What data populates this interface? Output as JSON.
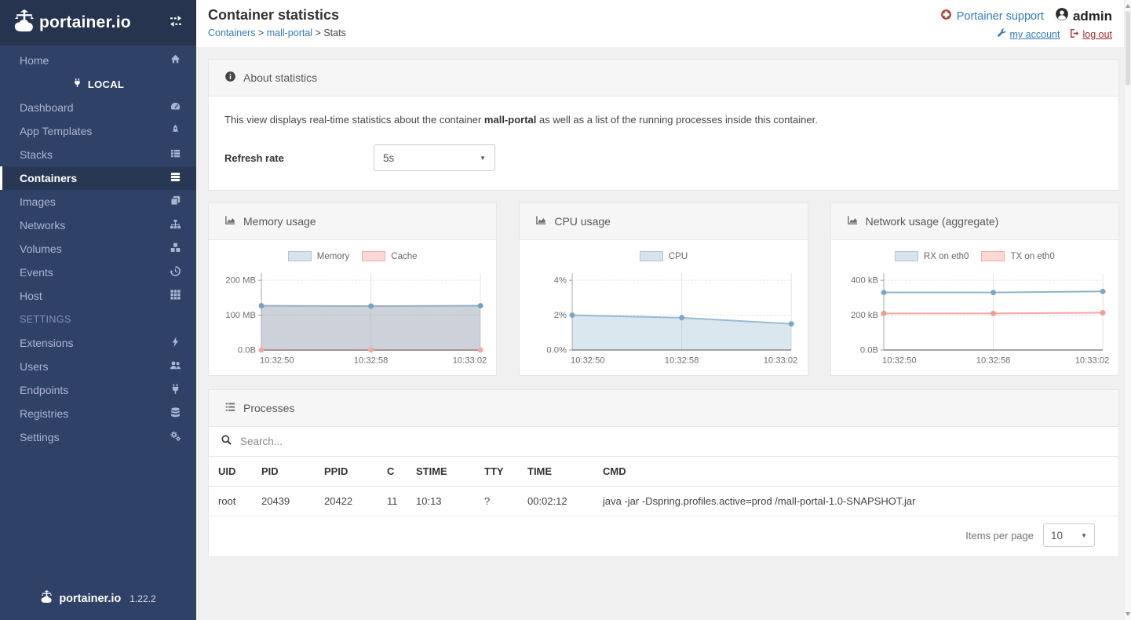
{
  "app": {
    "brand": "portainer.io",
    "version": "1.22.2"
  },
  "sidebar": {
    "home_label": "Home",
    "endpoint_label": "LOCAL",
    "items": [
      {
        "label": "Dashboard",
        "icon": "dashboard-icon",
        "active": false
      },
      {
        "label": "App Templates",
        "icon": "rocket-icon",
        "active": false
      },
      {
        "label": "Stacks",
        "icon": "list-icon",
        "active": false
      },
      {
        "label": "Containers",
        "icon": "server-icon",
        "active": true
      },
      {
        "label": "Images",
        "icon": "clone-icon",
        "active": false
      },
      {
        "label": "Networks",
        "icon": "sitemap-icon",
        "active": false
      },
      {
        "label": "Volumes",
        "icon": "cubes-icon",
        "active": false
      },
      {
        "label": "Events",
        "icon": "history-icon",
        "active": false
      },
      {
        "label": "Host",
        "icon": "grid-icon",
        "active": false
      }
    ],
    "settings_heading": "SETTINGS",
    "settings_items": [
      {
        "label": "Extensions",
        "icon": "bolt-icon",
        "active": false
      },
      {
        "label": "Users",
        "icon": "users-icon",
        "active": false
      },
      {
        "label": "Endpoints",
        "icon": "plug-icon",
        "active": false
      },
      {
        "label": "Registries",
        "icon": "database-icon",
        "active": false
      },
      {
        "label": "Settings",
        "icon": "cogs-icon",
        "active": false
      }
    ]
  },
  "header": {
    "title": "Container statistics",
    "breadcrumb": [
      {
        "label": "Containers",
        "link": true
      },
      {
        "label": "mall-portal",
        "link": true
      },
      {
        "label": "Stats",
        "link": false
      }
    ],
    "support_label": "Portainer support",
    "user_name": "admin",
    "my_account_label": "my account",
    "log_out_label": "log out"
  },
  "about": {
    "title": "About statistics",
    "description_prefix": "This view displays real-time statistics about the container ",
    "container_name": "mall-portal",
    "description_suffix": " as well as a list of the running processes inside this container.",
    "refresh_label": "Refresh rate",
    "refresh_value": "5s"
  },
  "chart_data": [
    {
      "type": "area",
      "title": "Memory usage",
      "x": [
        "10:32:50",
        "10:32:58",
        "10:33:02"
      ],
      "yticks": {
        "values": [
          200,
          100,
          0
        ],
        "labels": [
          "200 MB",
          "100 MB",
          "0.0B"
        ]
      },
      "ymax": 220,
      "ylim": [
        0,
        220
      ],
      "grid": true,
      "legend_position": "top",
      "series": [
        {
          "name": "Memory",
          "values": [
            127,
            126,
            127
          ],
          "stroke": "#9bafc4",
          "fill": "rgba(134,146,166,0.42)",
          "point": "#73a2c4",
          "sw_fill": "#d8e3ec",
          "sw_border": "#a9c6da"
        },
        {
          "name": "Cache",
          "values": [
            0,
            0,
            0
          ],
          "stroke": "#f2aba4",
          "fill": "none",
          "point": "#f2aba4",
          "sw_fill": "#fcd9d7",
          "sw_border": "#f2aba4"
        }
      ]
    },
    {
      "type": "area",
      "title": "CPU usage",
      "x": [
        "10:32:50",
        "10:32:58",
        "10:33:02"
      ],
      "yticks": {
        "values": [
          4,
          2,
          0
        ],
        "labels": [
          "4%",
          "2%",
          "0.0%"
        ]
      },
      "ymax": 4.4,
      "ylim": [
        0,
        4.4
      ],
      "grid": true,
      "legend_position": "top",
      "series": [
        {
          "name": "CPU",
          "values": [
            2.0,
            1.85,
            1.5
          ],
          "stroke": "#97bbd3",
          "fill": "rgba(151,187,205,0.35)",
          "point": "#7ca7c8",
          "sw_fill": "#d8e3ec",
          "sw_border": "#a9c6da"
        }
      ]
    },
    {
      "type": "line",
      "title": "Network usage (aggregate)",
      "x": [
        "10:32:50",
        "10:32:58",
        "10:33:02"
      ],
      "yticks": {
        "values": [
          400,
          200,
          0
        ],
        "labels": [
          "400 kB",
          "200 kB",
          "0.0B"
        ]
      },
      "ymax": 440,
      "ylim": [
        0,
        440
      ],
      "grid": true,
      "legend_position": "top",
      "series": [
        {
          "name": "RX on eth0",
          "values": [
            330,
            330,
            336
          ],
          "stroke": "#8fb3ca",
          "fill": "none",
          "point": "#7ca7c8",
          "sw_fill": "#d8e3ec",
          "sw_border": "#a9c6da"
        },
        {
          "name": "TX on eth0",
          "values": [
            210,
            210,
            214
          ],
          "stroke": "#f2aba4",
          "fill": "none",
          "point": "#ee9d95",
          "sw_fill": "#fcd9d7",
          "sw_border": "#f2aba4"
        }
      ]
    }
  ],
  "processes": {
    "title": "Processes",
    "search_placeholder": "Search...",
    "columns": [
      "UID",
      "PID",
      "PPID",
      "C",
      "STIME",
      "TTY",
      "TIME",
      "CMD"
    ],
    "rows": [
      [
        "root",
        "20439",
        "20422",
        "11",
        "10:13",
        "?",
        "00:02:12",
        "java -jar -Dspring.profiles.active=prod /mall-portal-1.0-SNAPSHOT.jar"
      ]
    ],
    "items_per_page_label": "Items per page",
    "items_per_page_value": "10"
  },
  "colors": {
    "sidebar_bg": "#304167",
    "sidebar_header_bg": "#263450",
    "link_blue": "#337ab7",
    "danger_red": "#a5282d",
    "page_bg": "#f0f0f0"
  }
}
